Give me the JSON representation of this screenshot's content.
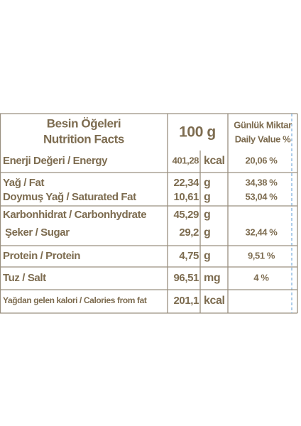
{
  "header": {
    "title_tr": "Besin Öğeleri",
    "title_en": "Nutrition Facts",
    "amount": "100 g",
    "daily_tr": "Günlük Miktar",
    "daily_en": "Daily Value %"
  },
  "rows": [
    {
      "lines": [
        {
          "name": "Enerji Değeri / Energy",
          "value": "401,28",
          "unit": "kcal",
          "daily": "20,06 %"
        }
      ]
    },
    {
      "lines": [
        {
          "name": "Yağ / Fat",
          "value": "22,34",
          "unit": "g",
          "daily": "34,38 %"
        },
        {
          "name": "Doymuş  Yağ / Saturated Fat",
          "value": "10,61",
          "unit": "g",
          "daily": "53,04 %"
        }
      ]
    },
    {
      "lines": [
        {
          "name": "Karbonhidrat / Carbonhydrate",
          "value": "45,29",
          "unit": "g"
        },
        {
          "name": "Şeker / Sugar",
          "value": "29,2",
          "unit": "g",
          "daily": "32,44 %"
        }
      ]
    },
    {
      "lines": [
        {
          "name": "Protein / Protein",
          "value": "4,75",
          "unit": "g",
          "daily": "9,51 %"
        }
      ]
    },
    {
      "lines": [
        {
          "name": "Tuz / Salt",
          "value": "96,51",
          "unit": "mg",
          "daily": "4 %"
        }
      ]
    },
    {
      "lines": [
        {
          "name": "Yağdan gelen kalori / Calories from fat",
          "value": "201,1",
          "unit": "kcal"
        }
      ]
    }
  ]
}
